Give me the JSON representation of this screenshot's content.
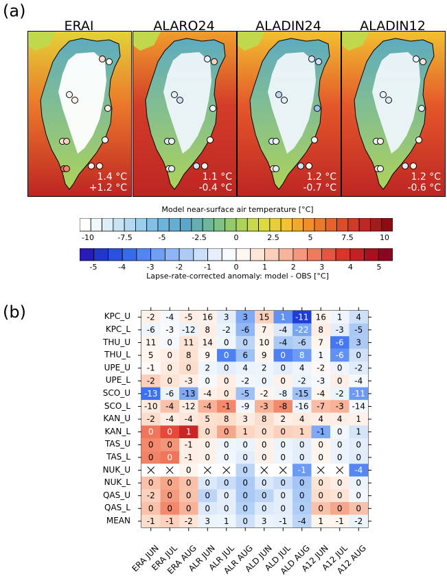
{
  "panel_a_label": "(a)",
  "panel_b_label": "(b)",
  "maps": [
    {
      "title": "ERAI",
      "line1": "1.4 °C",
      "line2": "+1.2 °C"
    },
    {
      "title": "ALARO24",
      "line1": "1.1 °C",
      "line2": "-0.4 °C"
    },
    {
      "title": "ALADIN24",
      "line1": "1.2 °C",
      "line2": "-0.7 °C"
    },
    {
      "title": "ALADIN12",
      "line1": "1.2 °C",
      "line2": "-0.6 °C"
    }
  ],
  "colorbar_temp": {
    "title": "Model near-surface air temperature [°C]",
    "ticks": [
      "-10",
      "-7.5",
      "-5",
      "-2.5",
      "0",
      "2.5",
      "5",
      "7.5",
      "10"
    ]
  },
  "colorbar_anom": {
    "title": "Lapse-rate-corrected anomaly: model - OBS [°C]",
    "ticks": [
      "-5",
      "-4",
      "-3",
      "-2",
      "-1",
      "0",
      "1",
      "2",
      "3",
      "4",
      "5"
    ]
  },
  "colors": {
    "cold_max": "#2b0fa8",
    "neutral": "#ffffff",
    "warm_max": "#7a0020"
  },
  "chart_data": {
    "type": "heatmap",
    "rows": [
      "KPC_U",
      "KPC_L",
      "THU_U",
      "THU_L",
      "UPE_U",
      "UPE_L",
      "SCO_U",
      "SCO_L",
      "KAN_U",
      "KAN_L",
      "TAS_U",
      "TAS_L",
      "NUK_U",
      "NUK_L",
      "QAS_U",
      "QAS_L",
      "MEAN"
    ],
    "columns": [
      "ERA JUN",
      "ERA JUL",
      "ERA AUG",
      "ALR JUN",
      "ALR JUL",
      "ALR AUG",
      "ALD JUN",
      "ALD JUL",
      "ALD AUG",
      "A12 JUN",
      "A12 JUL",
      "A12 AUG"
    ],
    "values": [
      [
        "-2",
        "-4",
        "-5",
        "16",
        "3",
        "3",
        "15",
        "1",
        "-11",
        "16",
        "1",
        "4"
      ],
      [
        "-6",
        "-3",
        "-12",
        "8",
        "-2",
        "-6",
        "7",
        "-4",
        "-22",
        "8",
        "-3",
        "-5"
      ],
      [
        "11",
        "0",
        "11",
        "14",
        "0",
        "0",
        "10",
        "-4",
        "-6",
        "7",
        "-6",
        "3"
      ],
      [
        "5",
        "0",
        "8",
        "9",
        "0",
        "6",
        "9",
        "0",
        "8",
        "1",
        "-6",
        "0"
      ],
      [
        "-1",
        "0",
        "0",
        "2",
        "0",
        "4",
        "2",
        "0",
        "4",
        "-2",
        "0",
        "-2"
      ],
      [
        "-2",
        "0",
        "-3",
        "0",
        "0",
        "-2",
        "0",
        "0",
        "-2",
        "-3",
        "0",
        "-4"
      ],
      [
        "-13",
        "-6",
        "-13",
        "-4",
        "0",
        "-5",
        "-2",
        "-8",
        "-15",
        "-4",
        "-2",
        "-11"
      ],
      [
        "-10",
        "-4",
        "-12",
        "-4",
        "-1",
        "-9",
        "-3",
        "-8",
        "-16",
        "-7",
        "-3",
        "-14"
      ],
      [
        "-2",
        "-4",
        "-4",
        "5",
        "8",
        "3",
        "8",
        "2",
        "4",
        "4",
        "4",
        "1"
      ],
      [
        "0",
        "0",
        "1",
        "0",
        "0",
        "1",
        "0",
        "0",
        "1",
        "-1",
        "0",
        "1"
      ],
      [
        "0",
        "0",
        "-1",
        "0",
        "0",
        "0",
        "0",
        "0",
        "0",
        "0",
        "0",
        "0"
      ],
      [
        "0",
        "0",
        "-1",
        "0",
        "0",
        "0",
        "0",
        "0",
        "0",
        "0",
        "0",
        "0"
      ],
      [
        "X",
        "X",
        "0",
        "X",
        "X",
        "0",
        "X",
        "X",
        "-1",
        "X",
        "X",
        "-4"
      ],
      [
        "0",
        "0",
        "0",
        "0",
        "0",
        "0",
        "0",
        "0",
        "0",
        "0",
        "0",
        "0"
      ],
      [
        "-2",
        "0",
        "0",
        "0",
        "0",
        "0",
        "0",
        "0",
        "0",
        "0",
        "0",
        "0"
      ],
      [
        "0",
        "0",
        "0",
        "0",
        "0",
        "0",
        "0",
        "0",
        "0",
        "0",
        "0",
        "0"
      ],
      [
        "-1",
        "-1",
        "-2",
        "3",
        "1",
        "0",
        "3",
        "-1",
        "-4",
        "1",
        "-1",
        "-2"
      ]
    ],
    "anomaly": [
      [
        0.4,
        -0.3,
        0.5,
        0.4,
        -0.8,
        -2.5,
        1.2,
        -3.0,
        -4.6,
        0.3,
        -0.5,
        -1.2
      ],
      [
        -0.5,
        -0.2,
        -0.6,
        0.5,
        -0.6,
        -2.2,
        0.4,
        -1.0,
        -2.6,
        0.5,
        -0.8,
        -1.8
      ],
      [
        0.3,
        -0.3,
        0.8,
        0.4,
        -0.5,
        -1.5,
        0.3,
        -1.8,
        -1.6,
        0.3,
        -3.5,
        -1.8
      ],
      [
        0.3,
        0.5,
        0.9,
        0.2,
        -3.3,
        -2.0,
        0.3,
        -3.3,
        -2.8,
        -0.3,
        -3.0,
        -1.2
      ],
      [
        0.2,
        0.6,
        1.0,
        -0.5,
        -0.8,
        -0.6,
        -0.5,
        -0.8,
        -0.5,
        0.2,
        -0.5,
        -0.9
      ],
      [
        1.2,
        0.8,
        0.5,
        -0.3,
        0.5,
        -0.4,
        -0.5,
        0.4,
        -0.6,
        -0.3,
        0.5,
        -0.3
      ],
      [
        -3.6,
        -0.6,
        -2.5,
        0.4,
        0.6,
        -2.0,
        0.3,
        -0.5,
        -2.0,
        0.3,
        -0.6,
        -2.8
      ],
      [
        0.6,
        1.5,
        0.5,
        1.8,
        2.5,
        -0.4,
        1.8,
        2.5,
        -0.5,
        1.6,
        1.8,
        -0.3
      ],
      [
        1.0,
        0.5,
        0.7,
        0.9,
        1.0,
        0.6,
        1.0,
        0.5,
        0.6,
        0.5,
        0.5,
        0.4
      ],
      [
        2.8,
        3.4,
        4.1,
        1.0,
        2.0,
        1.1,
        0.9,
        1.2,
        1.1,
        -2.5,
        -0.4,
        -1.1
      ],
      [
        2.5,
        2.3,
        0.5,
        0.4,
        -0.5,
        -0.6,
        0.4,
        -0.6,
        -0.8,
        0.3,
        -0.6,
        -0.8
      ],
      [
        2.6,
        2.8,
        0.5,
        0.4,
        -0.4,
        -0.8,
        0.4,
        -0.5,
        -0.8,
        0.3,
        -0.6,
        -0.9
      ],
      [
        null,
        null,
        0.3,
        null,
        null,
        -1.5,
        null,
        null,
        -2.8,
        null,
        null,
        -3.2
      ],
      [
        1.5,
        2.0,
        1.5,
        -1.0,
        -1.3,
        -1.8,
        -1.0,
        -1.3,
        -1.9,
        0.8,
        0.5,
        -0.6
      ],
      [
        1.2,
        2.2,
        1.5,
        -1.5,
        -0.8,
        -1.8,
        -1.5,
        -0.8,
        -1.8,
        1.0,
        0.8,
        -0.4
      ],
      [
        1.5,
        2.5,
        1.8,
        -1.0,
        -0.8,
        -1.6,
        -1.0,
        -0.8,
        -1.7,
        1.5,
        2.0,
        1.5
      ],
      [
        1.0,
        1.2,
        0.8,
        -0.6,
        -0.5,
        -1.2,
        -0.6,
        -0.7,
        -1.5,
        0.3,
        0.3,
        -0.6
      ]
    ],
    "anomaly_range": [
      -5.5,
      5.5
    ]
  }
}
